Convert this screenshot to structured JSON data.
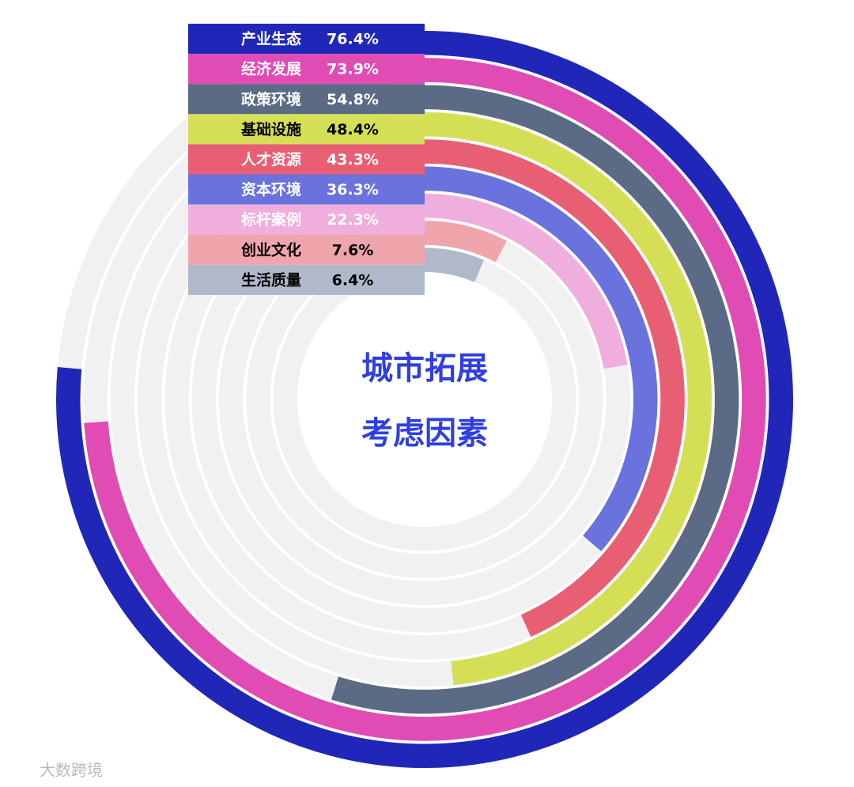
{
  "chart_data": {
    "type": "radial_bar",
    "title": "城市拓展",
    "subtitle": "考虑因素",
    "categories": [
      "产业生态",
      "经济发展",
      "政策环境",
      "基础设施",
      "人才资源",
      "资本环境",
      "标杆案例",
      "创业文化",
      "生活质量"
    ],
    "values": [
      76.4,
      73.9,
      54.8,
      48.4,
      43.3,
      36.3,
      22.3,
      7.6,
      6.4
    ],
    "value_labels": [
      "76.4%",
      "73.9%",
      "54.8%",
      "48.4%",
      "43.3%",
      "36.3%",
      "22.3%",
      "7.6%",
      "6.4%"
    ],
    "colors": [
      "#2027b8",
      "#e04bb4",
      "#5b6b86",
      "#d5df56",
      "#e85f74",
      "#6a72de",
      "#f0aedc",
      "#f0a5ad",
      "#b0b9c9"
    ],
    "label_colors": [
      "#ffffff",
      "#ffffff",
      "#ffffff",
      "#000000",
      "#ffffff",
      "#ffffff",
      "#ffffff",
      "#000000",
      "#000000"
    ],
    "vlim": [
      0,
      100
    ],
    "watermark": "大数跨境"
  }
}
